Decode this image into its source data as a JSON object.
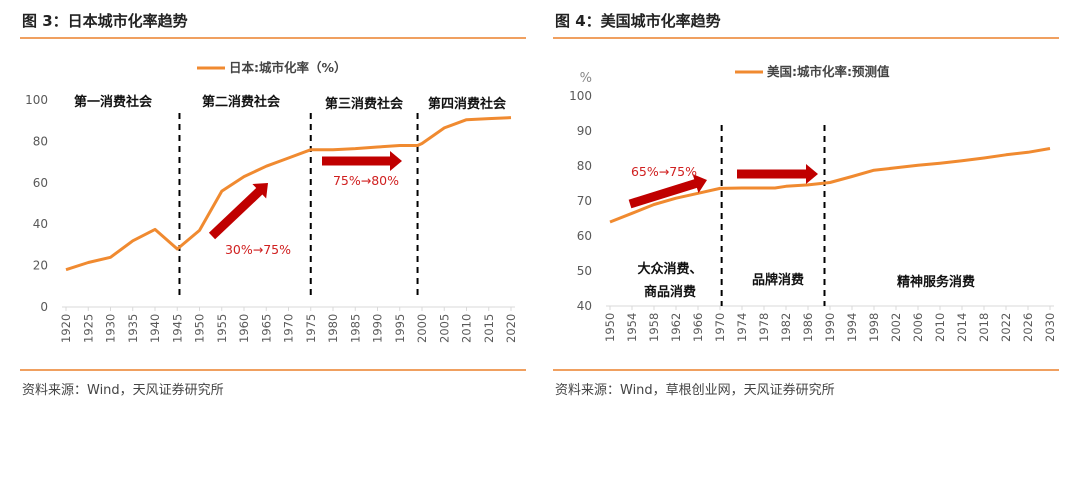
{
  "figures": [
    {
      "title": "图 3：日本城市化率趋势",
      "source": "资料来源：Wind，天风证券研究所"
    },
    {
      "title": "图 4：美国城市化率趋势",
      "source": "资料来源：Wind，草根创业网，天风证券研究所"
    }
  ],
  "colors": {
    "line": "#f08a30",
    "arrow": "#c00000",
    "annotation": "#d02020",
    "rule": "#f0a060"
  },
  "chart_data": [
    {
      "type": "line",
      "legend_position": "top",
      "ylim": [
        0,
        100
      ],
      "yticks": [
        0,
        20,
        40,
        60,
        80,
        100
      ],
      "xticks": [
        1920,
        1925,
        1930,
        1935,
        1940,
        1945,
        1950,
        1955,
        1960,
        1965,
        1970,
        1975,
        1980,
        1985,
        1990,
        1995,
        2000,
        2005,
        2010,
        2015,
        2020
      ],
      "series": [
        {
          "name": "日本:城市化率（%）",
          "x": [
            1920,
            1925,
            1930,
            1935,
            1940,
            1945,
            1950,
            1955,
            1960,
            1965,
            1970,
            1975,
            1980,
            1985,
            1990,
            1995,
            1999,
            2000,
            2005,
            2010,
            2015,
            2020
          ],
          "y": [
            18,
            21.5,
            24,
            32,
            37.5,
            28,
            37,
            56,
            63,
            68,
            72,
            76,
            76,
            76.5,
            77.3,
            78,
            78,
            79,
            86.5,
            90.5,
            91,
            91.5
          ]
        }
      ],
      "dividers": [
        1945.5,
        1975,
        1999
      ],
      "periods": [
        "第一消费社会",
        "第二消费社会",
        "第三消费社会",
        "第四消费社会"
      ],
      "annotations": [
        "30%→75%",
        "75%→80%"
      ]
    },
    {
      "type": "line",
      "legend_position": "top",
      "ylabel": "%",
      "ylim": [
        40,
        100
      ],
      "yticks": [
        40,
        50,
        60,
        70,
        80,
        90,
        100
      ],
      "xticks": [
        1950,
        1954,
        1958,
        1962,
        1966,
        1970,
        1974,
        1978,
        1982,
        1986,
        1990,
        1994,
        1998,
        2002,
        2006,
        2010,
        2014,
        2018,
        2022,
        2026,
        2030
      ],
      "series": [
        {
          "name": "美国:城市化率:预测值",
          "x": [
            1950,
            1954,
            1958,
            1962,
            1966,
            1970,
            1974,
            1978,
            1980,
            1982,
            1986,
            1990,
            1994,
            1998,
            2002,
            2006,
            2010,
            2014,
            2018,
            2022,
            2026,
            2030
          ],
          "y": [
            64,
            66.5,
            69,
            70.8,
            72.2,
            73.6,
            73.7,
            73.7,
            73.7,
            74.2,
            74.6,
            75.3,
            77,
            78.8,
            79.5,
            80.2,
            80.8,
            81.5,
            82.3,
            83.2,
            83.9,
            85
          ]
        }
      ],
      "dividers": [
        1970.3,
        1989
      ],
      "periods": [
        "大众消费、",
        "商品消费",
        "品牌消费",
        "精神服务消费"
      ],
      "annotations": [
        "65%→75%"
      ]
    }
  ]
}
